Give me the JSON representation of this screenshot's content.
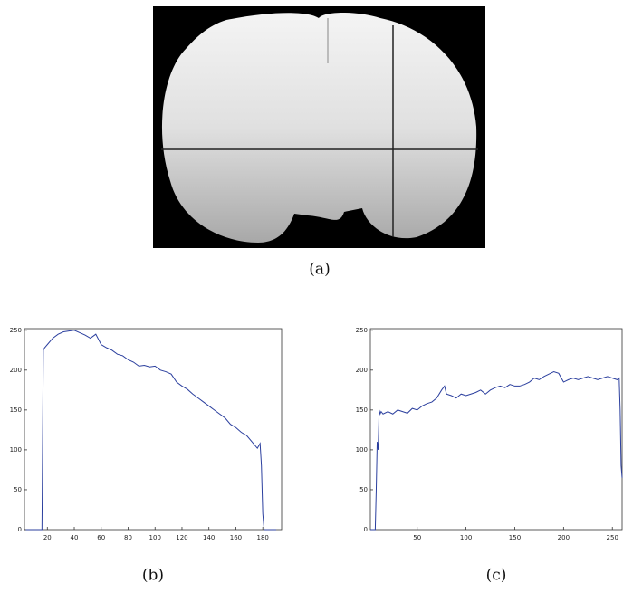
{
  "image": {
    "caption": "(a)"
  },
  "chart_data": [
    {
      "type": "line",
      "caption": "(b)",
      "color": "#2b3f9e",
      "x": [
        4,
        16,
        17,
        18,
        20,
        24,
        28,
        32,
        36,
        40,
        44,
        48,
        52,
        56,
        60,
        64,
        68,
        72,
        76,
        80,
        84,
        88,
        92,
        96,
        100,
        104,
        108,
        112,
        116,
        120,
        124,
        128,
        132,
        136,
        140,
        144,
        148,
        152,
        156,
        160,
        164,
        168,
        172,
        176,
        178,
        179,
        180,
        181,
        190
      ],
      "values": [
        0,
        0,
        225,
        228,
        232,
        240,
        245,
        248,
        249,
        250,
        247,
        244,
        240,
        245,
        232,
        228,
        225,
        220,
        218,
        213,
        210,
        205,
        206,
        204,
        205,
        200,
        198,
        195,
        185,
        180,
        176,
        170,
        165,
        160,
        155,
        150,
        145,
        140,
        132,
        128,
        122,
        118,
        110,
        102,
        108,
        80,
        20,
        0,
        0
      ],
      "xlim": [
        3,
        194
      ],
      "ylim": [
        0,
        252
      ],
      "xticks": [
        20,
        40,
        60,
        80,
        100,
        120,
        140,
        160,
        180
      ],
      "yticks": [
        0,
        50,
        100,
        150,
        200,
        250
      ]
    },
    {
      "type": "line",
      "caption": "(c)",
      "color": "#2b3f9e",
      "x": [
        2,
        7,
        8,
        9,
        10,
        11,
        12,
        13,
        15,
        20,
        25,
        30,
        35,
        40,
        45,
        50,
        55,
        60,
        65,
        70,
        75,
        78,
        80,
        85,
        90,
        95,
        100,
        105,
        110,
        115,
        120,
        125,
        130,
        135,
        140,
        145,
        150,
        155,
        160,
        165,
        170,
        175,
        180,
        185,
        190,
        195,
        200,
        205,
        210,
        215,
        220,
        225,
        230,
        235,
        240,
        245,
        250,
        255,
        257,
        258,
        259,
        260
      ],
      "values": [
        0,
        0,
        50,
        110,
        100,
        150,
        145,
        148,
        145,
        148,
        145,
        150,
        148,
        146,
        152,
        150,
        155,
        158,
        160,
        165,
        175,
        180,
        170,
        168,
        165,
        170,
        168,
        170,
        172,
        175,
        170,
        175,
        178,
        180,
        178,
        182,
        180,
        180,
        182,
        185,
        190,
        188,
        192,
        195,
        198,
        196,
        185,
        188,
        190,
        188,
        190,
        192,
        190,
        188,
        190,
        192,
        190,
        188,
        190,
        150,
        80,
        65
      ],
      "xlim": [
        2,
        260
      ],
      "ylim": [
        0,
        252
      ],
      "xticks": [
        50,
        100,
        150,
        200,
        250
      ],
      "yticks": [
        0,
        50,
        100,
        150,
        200,
        250
      ]
    }
  ]
}
